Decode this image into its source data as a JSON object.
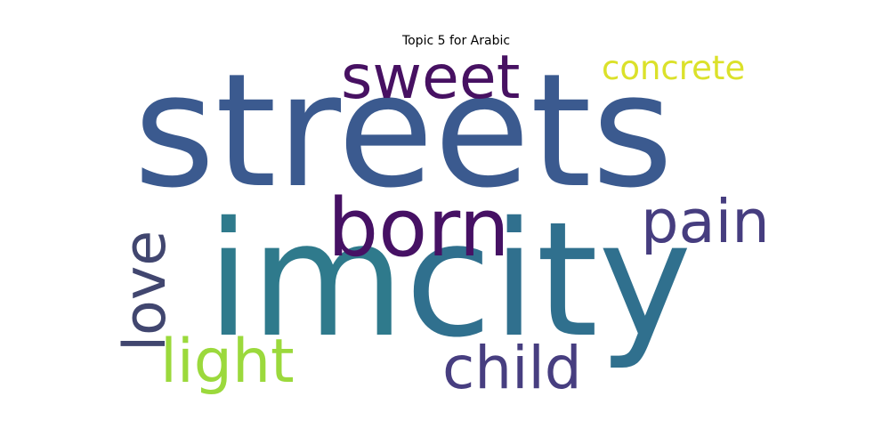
{
  "title": "Topic 5 for Arabic",
  "words": [
    {
      "text": "streets",
      "color": "#3b5a8f"
    },
    {
      "text": "city",
      "color": "#30708e"
    },
    {
      "text": "im",
      "color": "#2f7a8c"
    },
    {
      "text": "born",
      "color": "#461164"
    },
    {
      "text": "sweet",
      "color": "#471162"
    },
    {
      "text": "pain",
      "color": "#463d7f"
    },
    {
      "text": "child",
      "color": "#473e80"
    },
    {
      "text": "love",
      "color": "#41466f"
    },
    {
      "text": "light",
      "color": "#9bd93c"
    },
    {
      "text": "concrete",
      "color": "#dbe12a"
    }
  ]
}
